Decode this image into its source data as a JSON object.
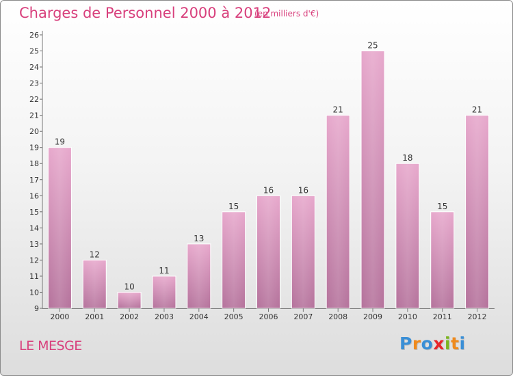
{
  "title": "Charges de Personnel 2000 à 2012",
  "unit_label": "(en milliers d'€)",
  "place_name": "LE MESGE",
  "logo": {
    "text": "Proxiti",
    "letter_colors": [
      "#3a8fd6",
      "#f08a1c",
      "#3a8fd6",
      "#e8262a",
      "#7ab51d",
      "#f08a1c",
      "#3a8fd6"
    ]
  },
  "colors": {
    "accent": "#d83f7c",
    "bar_top": "#e7a8cc",
    "bar_bottom": "#b5739c"
  },
  "chart_data": {
    "type": "bar",
    "categories": [
      "2000",
      "2001",
      "2002",
      "2003",
      "2004",
      "2005",
      "2006",
      "2007",
      "2008",
      "2009",
      "2010",
      "2011",
      "2012"
    ],
    "values": [
      19,
      12,
      10,
      11,
      13,
      15,
      16,
      16,
      21,
      25,
      18,
      15,
      21
    ],
    "ylim": [
      9,
      26
    ],
    "yticks": [
      9,
      10,
      11,
      12,
      13,
      14,
      15,
      16,
      17,
      18,
      19,
      20,
      21,
      22,
      23,
      24,
      25,
      26
    ],
    "grid": false,
    "data_labels": true
  }
}
